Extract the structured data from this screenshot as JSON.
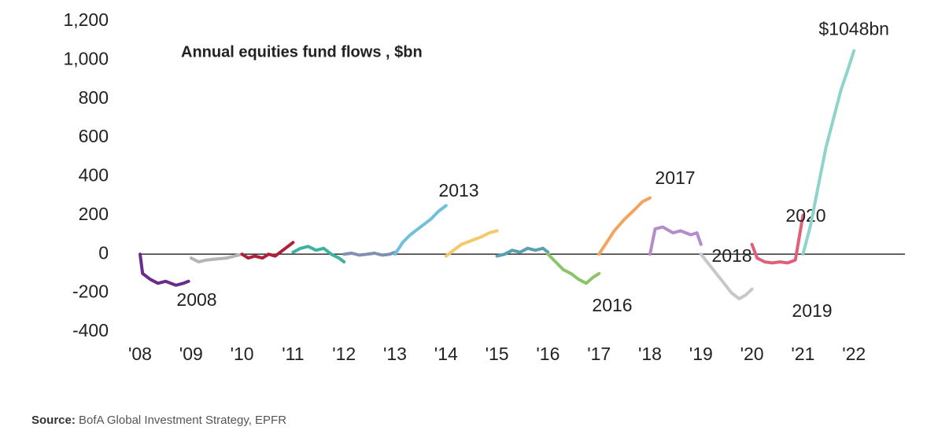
{
  "chart_data": {
    "type": "line",
    "title": "Annual equities fund flows , $bn",
    "source_label": "Source:",
    "source": "BofA Global Investment Strategy, EPFR",
    "xlim": [
      2008,
      2023
    ],
    "ylim": [
      -400,
      1200
    ],
    "xticks": [
      {
        "value": 2008,
        "label": "'08"
      },
      {
        "value": 2009,
        "label": "'09"
      },
      {
        "value": 2010,
        "label": "'10"
      },
      {
        "value": 2011,
        "label": "'11"
      },
      {
        "value": 2012,
        "label": "'12"
      },
      {
        "value": 2013,
        "label": "'13"
      },
      {
        "value": 2014,
        "label": "'14"
      },
      {
        "value": 2015,
        "label": "'15"
      },
      {
        "value": 2016,
        "label": "'16"
      },
      {
        "value": 2017,
        "label": "'17"
      },
      {
        "value": 2018,
        "label": "'18"
      },
      {
        "value": 2019,
        "label": "'19"
      },
      {
        "value": 2020,
        "label": "'20"
      },
      {
        "value": 2021,
        "label": "'21"
      },
      {
        "value": 2022,
        "label": "'22"
      }
    ],
    "yticks": [
      {
        "value": 1200,
        "label": "1,200"
      },
      {
        "value": 1000,
        "label": "1,000"
      },
      800,
      600,
      400,
      200,
      0,
      -200,
      -400
    ],
    "grid": false,
    "series": [
      {
        "name": "2008",
        "color": "#6a2b8c",
        "x": [
          2008,
          2008.05,
          2008.2,
          2008.35,
          2008.5,
          2008.7,
          2008.85,
          2008.95
        ],
        "values": [
          0,
          -100,
          -130,
          -150,
          -140,
          -160,
          -150,
          -140
        ]
      },
      {
        "color": "#b5b5b5",
        "x": [
          2009,
          2009.15,
          2009.3,
          2009.5,
          2009.7,
          2009.85,
          2010
        ],
        "values": [
          -20,
          -40,
          -30,
          -25,
          -20,
          -10,
          0
        ]
      },
      {
        "name": "",
        "color": "#b0203a",
        "x": [
          2010,
          2010.12,
          2010.25,
          2010.4,
          2010.52,
          2010.65,
          2010.8,
          2010.9,
          2011
        ],
        "values": [
          0,
          -20,
          -10,
          -20,
          0,
          -10,
          20,
          40,
          60
        ]
      },
      {
        "color": "#3bb3a0",
        "x": [
          2011,
          2011.15,
          2011.3,
          2011.45,
          2011.6,
          2011.75,
          2011.9,
          2012
        ],
        "values": [
          10,
          30,
          40,
          20,
          30,
          0,
          -20,
          -40
        ]
      },
      {
        "color": "#8090b0",
        "x": [
          2012,
          2012.15,
          2012.3,
          2012.45,
          2012.6,
          2012.75,
          2012.9,
          2013
        ],
        "values": [
          0,
          5,
          -5,
          0,
          5,
          -5,
          0,
          10
        ]
      },
      {
        "name": "2013",
        "color": "#6ec0dc",
        "x": [
          2013,
          2013.15,
          2013.3,
          2013.5,
          2013.7,
          2013.85,
          2014
        ],
        "values": [
          0,
          60,
          100,
          140,
          180,
          220,
          250
        ]
      },
      {
        "color": "#f5c96a",
        "x": [
          2014,
          2014.15,
          2014.3,
          2014.5,
          2014.7,
          2014.85,
          2015
        ],
        "values": [
          -10,
          20,
          50,
          70,
          90,
          110,
          120
        ]
      },
      {
        "color": "#5aa0b0",
        "x": [
          2015,
          2015.15,
          2015.3,
          2015.45,
          2015.6,
          2015.75,
          2015.9,
          2016
        ],
        "values": [
          -10,
          0,
          20,
          10,
          30,
          20,
          30,
          10
        ]
      },
      {
        "name": "2016",
        "color": "#8cc46a",
        "x": [
          2016,
          2016.15,
          2016.3,
          2016.45,
          2016.6,
          2016.75,
          2016.88,
          2017
        ],
        "values": [
          0,
          -40,
          -80,
          -100,
          -130,
          -150,
          -120,
          -100
        ]
      },
      {
        "name": "2017",
        "color": "#f2a560",
        "x": [
          2017,
          2017.15,
          2017.3,
          2017.5,
          2017.7,
          2017.85,
          2018
        ],
        "values": [
          0,
          60,
          120,
          180,
          230,
          270,
          290
        ]
      },
      {
        "name": "2018",
        "color": "#b48ccc",
        "x": [
          2018,
          2018.1,
          2018.25,
          2018.45,
          2018.6,
          2018.8,
          2018.92,
          2019
        ],
        "values": [
          0,
          130,
          140,
          110,
          120,
          100,
          110,
          50
        ]
      },
      {
        "name": "2019",
        "color": "#c8c8c8",
        "x": [
          2019,
          2019.15,
          2019.3,
          2019.45,
          2019.6,
          2019.75,
          2019.88,
          2020
        ],
        "values": [
          0,
          -50,
          -100,
          -150,
          -200,
          -230,
          -210,
          -180
        ]
      },
      {
        "name": "2020",
        "color": "#e0607a",
        "x": [
          2020,
          2020.1,
          2020.25,
          2020.4,
          2020.55,
          2020.7,
          2020.85,
          2021
        ],
        "values": [
          50,
          -20,
          -40,
          -45,
          -40,
          -45,
          -30,
          200
        ]
      },
      {
        "color": "#8ed4cc",
        "x": [
          2021,
          2021.15,
          2021.3,
          2021.45,
          2021.6,
          2021.75,
          2021.88,
          2022
        ],
        "values": [
          0,
          150,
          350,
          550,
          700,
          850,
          950,
          1048
        ],
        "value_labels": [
          null,
          null,
          null,
          null,
          null,
          null,
          null,
          "$1048bn"
        ]
      }
    ]
  }
}
